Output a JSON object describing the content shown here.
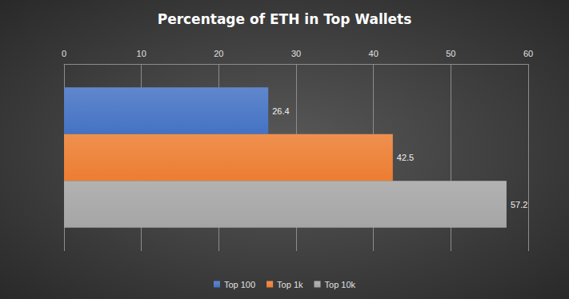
{
  "chart_data": {
    "type": "bar",
    "title": "Percentage of ETH in Top Wallets",
    "orientation": "horizontal",
    "categories": [
      null
    ],
    "series": [
      {
        "name": "Top 100",
        "color": "#4472c4",
        "values": [
          26.4
        ]
      },
      {
        "name": "Top 1k",
        "color": "#ed7d31",
        "values": [
          42.5
        ]
      },
      {
        "name": "Top 10k",
        "color": "#a5a5a5",
        "values": [
          57.2
        ]
      }
    ],
    "xlim": [
      0,
      60
    ],
    "xticks": [
      0,
      10,
      20,
      30,
      40,
      50,
      60
    ],
    "grid": true,
    "legend": "bottom",
    "data_labels": true,
    "tick_labels": "x"
  }
}
